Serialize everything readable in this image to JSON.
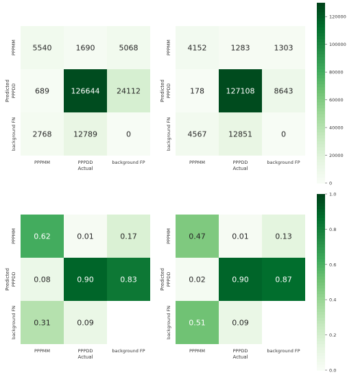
{
  "chart_data": [
    {
      "type": "heatmap",
      "xlabel": "Actual",
      "ylabel": "Predicted",
      "x_categories": [
        "PPPMM",
        "PPPDD",
        "background FP"
      ],
      "y_categories": [
        "PPPMM",
        "PPPDD",
        "background FN"
      ],
      "values": [
        [
          5540,
          1690,
          5068
        ],
        [
          689,
          126644,
          24112
        ],
        [
          2768,
          12789,
          0
        ]
      ],
      "value_format": "int"
    },
    {
      "type": "heatmap",
      "xlabel": "Actual",
      "ylabel": "Predicted",
      "x_categories": [
        "PPPMM",
        "PPPDD",
        "background FP"
      ],
      "y_categories": [
        "PPPMM",
        "PPPDD",
        "background FN"
      ],
      "values": [
        [
          4152,
          1283,
          1303
        ],
        [
          178,
          127108,
          8643
        ],
        [
          4567,
          12851,
          0
        ]
      ],
      "value_format": "int",
      "colorbar": {
        "min": 0,
        "max": 130000,
        "ticks": [
          0,
          20000,
          40000,
          60000,
          80000,
          100000,
          120000
        ]
      }
    },
    {
      "type": "heatmap",
      "xlabel": "Actual",
      "ylabel": "Predicted",
      "x_categories": [
        "PPPMM",
        "PPPDD",
        "background FP"
      ],
      "y_categories": [
        "PPPMM",
        "PPPDD",
        "background FN"
      ],
      "values": [
        [
          0.62,
          0.01,
          0.17
        ],
        [
          0.08,
          0.9,
          0.83
        ],
        [
          0.31,
          0.09,
          null
        ]
      ],
      "value_format": "2dp"
    },
    {
      "type": "heatmap",
      "xlabel": "Actual",
      "ylabel": "Predicted",
      "x_categories": [
        "PPPMM",
        "PPPDD",
        "background FP"
      ],
      "y_categories": [
        "PPPMM",
        "PPPDD",
        "background FN"
      ],
      "values": [
        [
          0.47,
          0.01,
          0.13
        ],
        [
          0.02,
          0.9,
          0.87
        ],
        [
          0.51,
          0.09,
          null
        ]
      ],
      "value_format": "2dp",
      "colorbar": {
        "min": 0,
        "max": 1.0,
        "ticks": [
          "0.0",
          "0.2",
          "0.4",
          "0.6",
          "0.8",
          "1.0"
        ]
      }
    }
  ],
  "colors": {
    "colormap": "Greens",
    "text_on_light": "#262626",
    "text_on_dark": "#ffffff",
    "tick_text": "#333333"
  }
}
